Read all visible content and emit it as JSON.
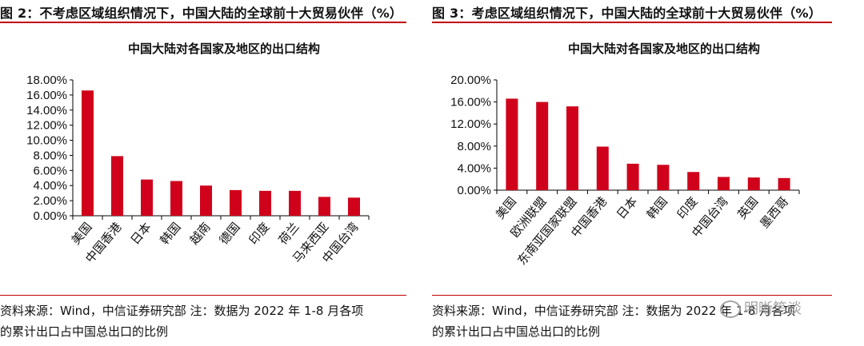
{
  "left": {
    "figure_title": "图 2：不考虑区域组织情况下，中国大陆的全球前十大贸易伙伴（%）",
    "source_line1": "资料来源：Wind，中信证券研究部  注：数据为 2022 年 1-8 月各项",
    "source_line2": "的累计出口占中国总出口的比例"
  },
  "right": {
    "figure_title": "图 3：考虑区域组织情况下，中国大陆的全球前十大贸易伙伴（%）",
    "source_line1": "资料来源：Wind，中信证券研究部  注：数据为 2022 年 1-8 月各项",
    "source_line2": "的累计出口占中国总出口的比例"
  },
  "watermark": {
    "text": "明晰笔谈",
    "icon": "wechat-icon"
  },
  "chart_data": [
    {
      "type": "bar",
      "title": "中国大陆对各国家及地区的出口结构",
      "categories": [
        "美国",
        "中国香港",
        "日本",
        "韩国",
        "越南",
        "德国",
        "印度",
        "荷兰",
        "马来西亚",
        "中国台湾"
      ],
      "values": [
        16.6,
        7.9,
        4.8,
        4.6,
        4.0,
        3.4,
        3.3,
        3.3,
        2.5,
        2.4
      ],
      "ylim": [
        0,
        18
      ],
      "yticks": [
        0,
        2,
        4,
        6,
        8,
        10,
        12,
        14,
        16,
        18
      ],
      "ytick_labels": [
        "0.00%",
        "2.00%",
        "4.00%",
        "6.00%",
        "8.00%",
        "10.00%",
        "12.00%",
        "14.00%",
        "16.00%",
        "18.00%"
      ],
      "bar_color": "#d0021b",
      "grid": false
    },
    {
      "type": "bar",
      "title": "中国大陆对各国家及地区的出口结构",
      "categories": [
        "美国",
        "欧洲联盟",
        "东南亚国家联盟",
        "中国香港",
        "日本",
        "韩国",
        "印度",
        "中国台湾",
        "英国",
        "墨西哥"
      ],
      "values": [
        16.6,
        16.0,
        15.2,
        7.9,
        4.8,
        4.6,
        3.3,
        2.4,
        2.3,
        2.2
      ],
      "ylim": [
        0,
        20
      ],
      "yticks": [
        0,
        4,
        8,
        12,
        16,
        20
      ],
      "ytick_labels": [
        "0.00%",
        "4.00%",
        "8.00%",
        "12.00%",
        "16.00%",
        "20.00%"
      ],
      "bar_color": "#d0021b",
      "grid": false
    }
  ]
}
